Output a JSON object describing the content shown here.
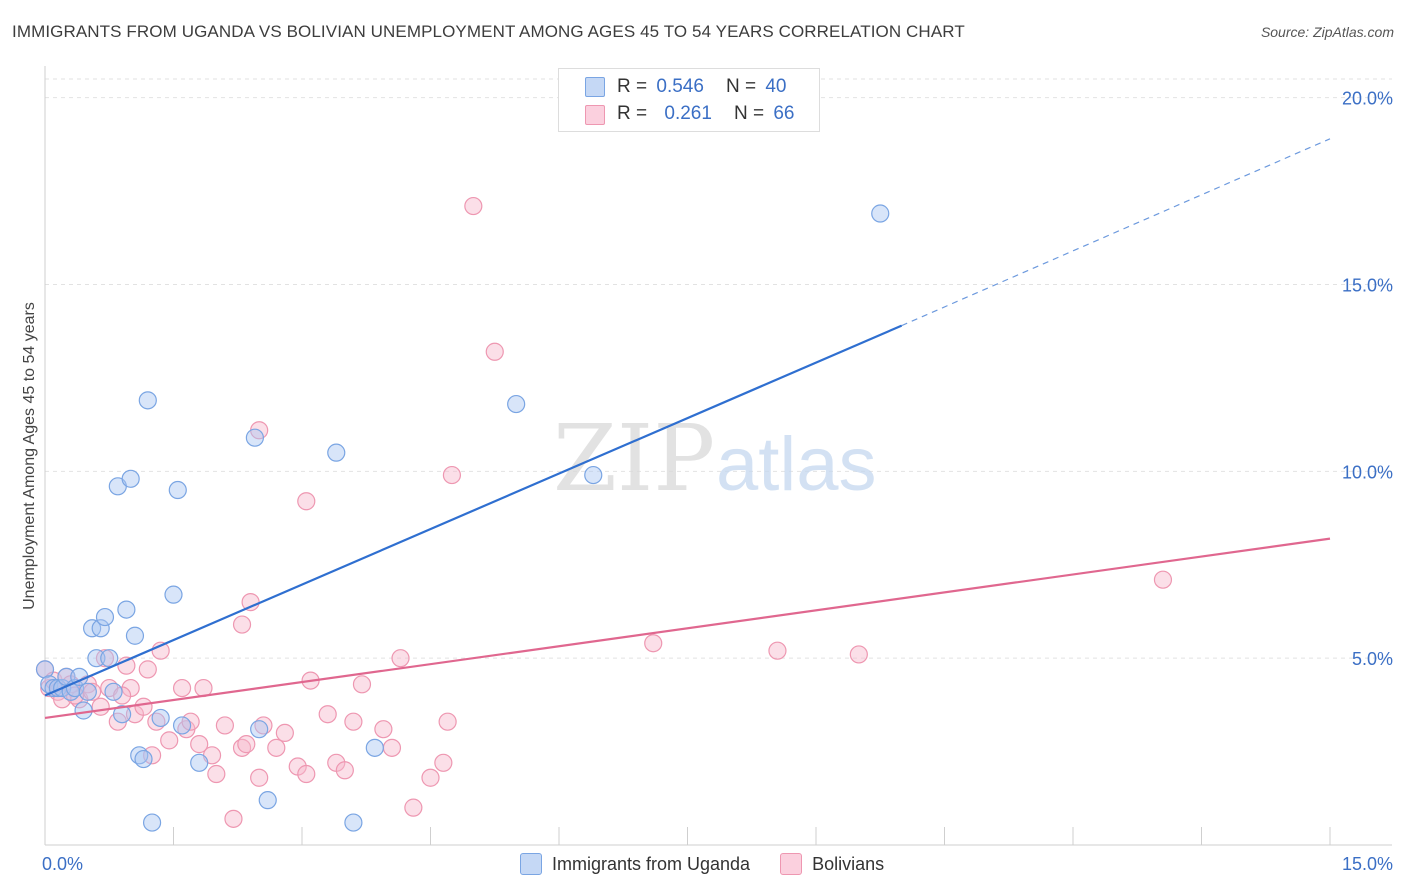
{
  "title": "IMMIGRANTS FROM UGANDA VS BOLIVIAN UNEMPLOYMENT AMONG AGES 45 TO 54 YEARS CORRELATION CHART",
  "source": "Source: ZipAtlas.com",
  "watermark": {
    "zip": "ZIP",
    "atlas": "atlas"
  },
  "legend": {
    "r_label": "R =",
    "n_label": "N =",
    "uganda": {
      "r": "0.546",
      "n": "40"
    },
    "bolivians": {
      "r": "0.261",
      "n": "66"
    }
  },
  "colors": {
    "uganda_fill": "#a9c6f2",
    "uganda_stroke": "#7aa5e3",
    "uganda_line": "#2f6fd0",
    "bolivians_fill": "#f7b9cc",
    "bolivians_stroke": "#ee97b1",
    "bolivians_line": "#e0678f",
    "axis_label": "#3b6fc5"
  },
  "chart_data": {
    "type": "scatter",
    "title": "IMMIGRANTS FROM UGANDA VS BOLIVIAN UNEMPLOYMENT AMONG AGES 45 TO 54 YEARS CORRELATION CHART",
    "xlabel": "",
    "ylabel": "Unemployment Among Ages 45 to 54 years",
    "xlim": [
      0,
      15
    ],
    "ylim": [
      0,
      20.5
    ],
    "x_tick_labels": [
      {
        "value": 0,
        "label": "0.0%"
      },
      {
        "value": 15,
        "label": "15.0%"
      }
    ],
    "y_tick_labels": [
      {
        "value": 5,
        "label": "5.0%"
      },
      {
        "value": 10,
        "label": "10.0%"
      },
      {
        "value": 15,
        "label": "15.0%"
      },
      {
        "value": 20,
        "label": "20.0%"
      }
    ],
    "series": [
      {
        "name": "Immigrants from Uganda",
        "r": 0.546,
        "n": 40,
        "trend": {
          "x0": 0,
          "y0": 4.0,
          "x1": 10.0,
          "y1": 13.9,
          "dash_to_x": 15.0,
          "dash_to_y": 18.9
        },
        "points": [
          [
            0.0,
            4.7
          ],
          [
            0.05,
            4.3
          ],
          [
            0.1,
            4.2
          ],
          [
            0.15,
            4.2
          ],
          [
            0.2,
            4.2
          ],
          [
            0.25,
            4.5
          ],
          [
            0.3,
            4.1
          ],
          [
            0.35,
            4.2
          ],
          [
            0.4,
            4.5
          ],
          [
            0.45,
            3.6
          ],
          [
            0.5,
            4.1
          ],
          [
            0.55,
            5.8
          ],
          [
            0.6,
            5.0
          ],
          [
            0.65,
            5.8
          ],
          [
            0.7,
            6.1
          ],
          [
            0.75,
            5.0
          ],
          [
            0.8,
            4.1
          ],
          [
            0.85,
            9.6
          ],
          [
            0.9,
            3.5
          ],
          [
            0.95,
            6.3
          ],
          [
            1.0,
            9.8
          ],
          [
            1.05,
            5.6
          ],
          [
            1.1,
            2.4
          ],
          [
            1.15,
            2.3
          ],
          [
            1.2,
            11.9
          ],
          [
            1.25,
            0.6
          ],
          [
            1.35,
            3.4
          ],
          [
            1.5,
            6.7
          ],
          [
            1.55,
            9.5
          ],
          [
            1.6,
            3.2
          ],
          [
            1.8,
            2.2
          ],
          [
            2.45,
            10.9
          ],
          [
            2.5,
            3.1
          ],
          [
            2.6,
            1.2
          ],
          [
            3.4,
            10.5
          ],
          [
            3.6,
            0.6
          ],
          [
            3.85,
            2.6
          ],
          [
            5.5,
            11.8
          ],
          [
            6.4,
            9.9
          ],
          [
            9.75,
            16.9
          ]
        ]
      },
      {
        "name": "Bolivians",
        "r": 0.261,
        "n": 66,
        "trend": {
          "x0": 0,
          "y0": 3.4,
          "x1": 15.0,
          "y1": 8.2
        },
        "points": [
          [
            0.0,
            4.7
          ],
          [
            0.05,
            4.2
          ],
          [
            0.1,
            4.4
          ],
          [
            0.15,
            4.1
          ],
          [
            0.2,
            3.9
          ],
          [
            0.25,
            4.5
          ],
          [
            0.3,
            4.3
          ],
          [
            0.4,
            3.9
          ],
          [
            0.5,
            4.3
          ],
          [
            0.55,
            4.1
          ],
          [
            0.65,
            3.7
          ],
          [
            0.7,
            5.0
          ],
          [
            0.75,
            4.2
          ],
          [
            0.85,
            3.3
          ],
          [
            0.95,
            4.8
          ],
          [
            1.0,
            4.2
          ],
          [
            1.05,
            3.5
          ],
          [
            1.15,
            3.7
          ],
          [
            1.2,
            4.7
          ],
          [
            1.25,
            2.4
          ],
          [
            1.3,
            3.3
          ],
          [
            1.35,
            5.2
          ],
          [
            1.45,
            2.8
          ],
          [
            1.6,
            4.2
          ],
          [
            1.65,
            3.1
          ],
          [
            1.7,
            3.3
          ],
          [
            1.8,
            2.7
          ],
          [
            1.85,
            4.2
          ],
          [
            1.95,
            2.4
          ],
          [
            2.0,
            1.9
          ],
          [
            2.1,
            3.2
          ],
          [
            2.2,
            0.7
          ],
          [
            2.3,
            2.6
          ],
          [
            2.35,
            2.7
          ],
          [
            2.5,
            1.8
          ],
          [
            2.55,
            3.2
          ],
          [
            2.7,
            2.6
          ],
          [
            2.8,
            3.0
          ],
          [
            2.95,
            2.1
          ],
          [
            3.05,
            1.9
          ],
          [
            3.1,
            4.4
          ],
          [
            3.3,
            3.5
          ],
          [
            3.4,
            2.2
          ],
          [
            3.5,
            2.0
          ],
          [
            3.6,
            3.3
          ],
          [
            3.7,
            4.3
          ],
          [
            3.95,
            3.1
          ],
          [
            4.05,
            2.6
          ],
          [
            4.15,
            5.0
          ],
          [
            4.3,
            1.0
          ],
          [
            4.5,
            1.8
          ],
          [
            4.65,
            2.2
          ],
          [
            4.7,
            3.3
          ],
          [
            4.75,
            9.9
          ],
          [
            5.0,
            17.1
          ],
          [
            5.25,
            13.2
          ],
          [
            2.4,
            6.5
          ],
          [
            2.5,
            11.1
          ],
          [
            2.3,
            5.9
          ],
          [
            3.05,
            9.2
          ],
          [
            0.9,
            4.0
          ],
          [
            7.1,
            5.4
          ],
          [
            8.55,
            5.2
          ],
          [
            9.5,
            5.1
          ],
          [
            13.05,
            7.1
          ],
          [
            0.35,
            4.0
          ]
        ]
      }
    ]
  },
  "bottom_legend": {
    "uganda_label": "Immigrants from Uganda",
    "bolivians_label": "Bolivians"
  }
}
